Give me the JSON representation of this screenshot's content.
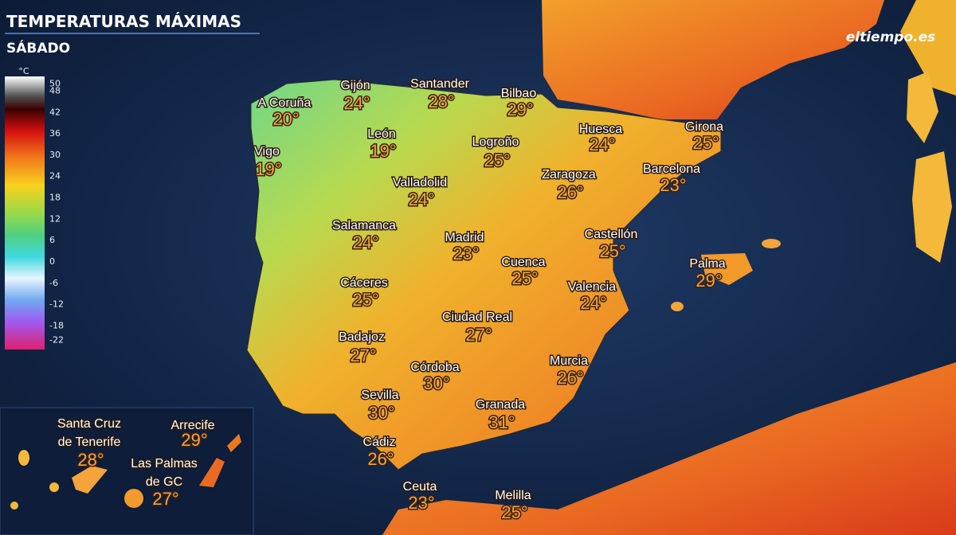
{
  "header": {
    "title": "TEMPERATURAS MÁXIMAS",
    "subtitle": "SÁBADO"
  },
  "logo": "eltiempo.es",
  "legend": {
    "unit": "°C",
    "ticks": [
      50,
      48,
      42,
      36,
      30,
      24,
      18,
      12,
      6,
      0,
      -6,
      -12,
      -18,
      -22
    ]
  },
  "cities": [
    {
      "name": [
        "A Coruña"
      ],
      "temp": "20°"
    },
    {
      "name": [
        "Gijón"
      ],
      "temp": "24°"
    },
    {
      "name": [
        "Santander"
      ],
      "temp": "28°"
    },
    {
      "name": [
        "Bilbao"
      ],
      "temp": "29°"
    },
    {
      "name": [
        "León"
      ],
      "temp": "19°"
    },
    {
      "name": [
        "Logroño"
      ],
      "temp": "25°"
    },
    {
      "name": [
        "Huesca"
      ],
      "temp": "24°"
    },
    {
      "name": [
        "Girona"
      ],
      "temp": "25°"
    },
    {
      "name": [
        "Vigo"
      ],
      "temp": "19°"
    },
    {
      "name": [
        "Valladolid"
      ],
      "temp": "24°"
    },
    {
      "name": [
        "Zaragoza"
      ],
      "temp": "26°"
    },
    {
      "name": [
        "Barcelona"
      ],
      "temp": "23°"
    },
    {
      "name": [
        "Salamanca"
      ],
      "temp": "24°"
    },
    {
      "name": [
        "Madrid"
      ],
      "temp": "23°"
    },
    {
      "name": [
        "Castellón"
      ],
      "temp": "25°"
    },
    {
      "name": [
        "Cuenca"
      ],
      "temp": "25°"
    },
    {
      "name": [
        "Palma"
      ],
      "temp": "29°"
    },
    {
      "name": [
        "Cáceres"
      ],
      "temp": "25°"
    },
    {
      "name": [
        "Valencia"
      ],
      "temp": "24°"
    },
    {
      "name": [
        "Ciudad Real"
      ],
      "temp": "27°"
    },
    {
      "name": [
        "Badajoz"
      ],
      "temp": "27°"
    },
    {
      "name": [
        "Córdoba"
      ],
      "temp": "30°"
    },
    {
      "name": [
        "Murcia"
      ],
      "temp": "26°"
    },
    {
      "name": [
        "Sevilla"
      ],
      "temp": "30°"
    },
    {
      "name": [
        "Granada"
      ],
      "temp": "31°"
    },
    {
      "name": [
        "Cádiz"
      ],
      "temp": "26°"
    },
    {
      "name": [
        "Ceuta"
      ],
      "temp": "23°"
    },
    {
      "name": [
        "Melilla"
      ],
      "temp": "25°"
    },
    {
      "name": [
        "Santa Cruz",
        "de Tenerife"
      ],
      "temp": "28°"
    },
    {
      "name": [
        "Arrecife"
      ],
      "temp": "29°"
    },
    {
      "name": [
        "Las Palmas",
        "de GC"
      ],
      "temp": "27°"
    }
  ]
}
